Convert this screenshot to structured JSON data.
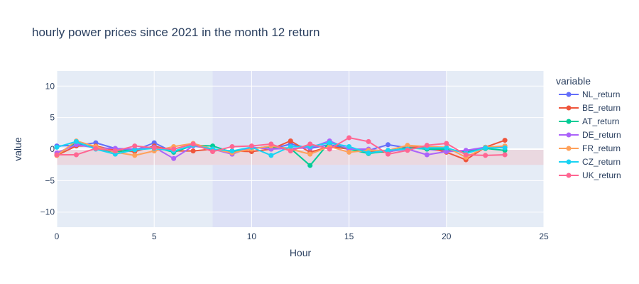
{
  "chart_data": {
    "type": "line",
    "title": "hourly power prices since 2021 in the month 12  return",
    "xlabel": "Hour",
    "ylabel": "value",
    "xlim": [
      0,
      25
    ],
    "ylim": [
      -12.4,
      12.4
    ],
    "x_ticks": [
      0,
      5,
      10,
      15,
      20,
      25
    ],
    "x_tick_labels": [
      "0",
      "5",
      "10",
      "15",
      "20",
      "25"
    ],
    "y_ticks": [
      -10,
      -5,
      0,
      5,
      10
    ],
    "y_tick_labels": [
      "−10",
      "−5",
      "0",
      "5",
      "10"
    ],
    "grid": true,
    "legend_title": "variable",
    "legend_position": "right",
    "highlight_band_x": [
      8,
      20
    ],
    "highlight_band_y": [
      -2.5,
      0
    ],
    "colors": {
      "plot_bg": "#e5ecf6",
      "band_x": "#dde1f6",
      "band_y": "#ead8e0",
      "grid": "#ffffff",
      "text": "#2a3f5f"
    },
    "x": [
      0,
      1,
      2,
      3,
      4,
      5,
      6,
      7,
      8,
      9,
      10,
      11,
      12,
      13,
      14,
      15,
      16,
      17,
      18,
      19,
      20,
      21,
      22,
      23
    ],
    "series": [
      {
        "name": "NL_return",
        "color": "#636efa",
        "values": [
          0.5,
          0.6,
          1.0,
          0.1,
          -0.2,
          1.0,
          -0.5,
          0.6,
          0.0,
          -0.5,
          0.3,
          0.0,
          0.8,
          0.1,
          0.7,
          0.1,
          -0.2,
          0.7,
          0.2,
          0.0,
          -0.3,
          -0.3,
          0.2,
          0.3
        ]
      },
      {
        "name": "BE_return",
        "color": "#ef553b",
        "values": [
          -1.0,
          0.5,
          0.5,
          -0.2,
          -0.4,
          0.5,
          -0.3,
          -0.3,
          0.0,
          -0.3,
          -0.4,
          0.0,
          1.3,
          -0.5,
          0.4,
          0.0,
          -0.4,
          -0.5,
          0.3,
          0.3,
          -0.5,
          -1.7,
          0.3,
          1.4
        ]
      },
      {
        "name": "AT_return",
        "color": "#00cc96",
        "values": [
          -0.9,
          1.1,
          0.1,
          -0.5,
          0.0,
          0.3,
          -0.5,
          0.6,
          0.5,
          -0.5,
          0.1,
          0.4,
          0.1,
          -2.6,
          1.1,
          0.0,
          -0.7,
          -0.3,
          0.2,
          0.0,
          0.0,
          -0.5,
          0.1,
          -0.2
        ]
      },
      {
        "name": "DE_return",
        "color": "#ab63fa",
        "values": [
          -0.6,
          0.7,
          0.2,
          0.1,
          0.0,
          0.3,
          -1.5,
          0.5,
          0.0,
          -0.8,
          0.3,
          0.0,
          0.1,
          0.2,
          1.3,
          0.0,
          0.0,
          -0.4,
          0.0,
          -0.9,
          -0.4,
          -0.2,
          0.3,
          0.4
        ]
      },
      {
        "name": "FR_return",
        "color": "#ffa15a",
        "values": [
          -1.0,
          1.3,
          0.4,
          -0.5,
          -1.0,
          -0.3,
          0.4,
          0.9,
          0.0,
          -0.6,
          0.0,
          0.5,
          0.0,
          -0.8,
          0.4,
          -0.5,
          -0.2,
          -0.2,
          0.6,
          0.4,
          0.3,
          -1.3,
          0.3,
          0.5
        ]
      },
      {
        "name": "CZ_return",
        "color": "#19d3f3",
        "values": [
          0.3,
          1.2,
          0.0,
          -0.8,
          -0.1,
          0.1,
          -0.3,
          0.6,
          0.0,
          -0.3,
          0.3,
          -1.0,
          0.4,
          0.4,
          1.0,
          0.4,
          -0.6,
          -0.2,
          0.0,
          0.2,
          0.2,
          -0.7,
          0.2,
          0.2
        ]
      },
      {
        "name": "UK_return",
        "color": "#ff6692",
        "values": [
          -0.9,
          -0.9,
          0.1,
          -0.3,
          0.5,
          0.2,
          0.0,
          0.8,
          -0.4,
          0.4,
          0.5,
          0.8,
          -0.3,
          0.8,
          0.0,
          1.8,
          1.2,
          -0.8,
          -0.2,
          0.6,
          0.9,
          -0.9,
          -1.0,
          -0.9
        ]
      }
    ]
  }
}
